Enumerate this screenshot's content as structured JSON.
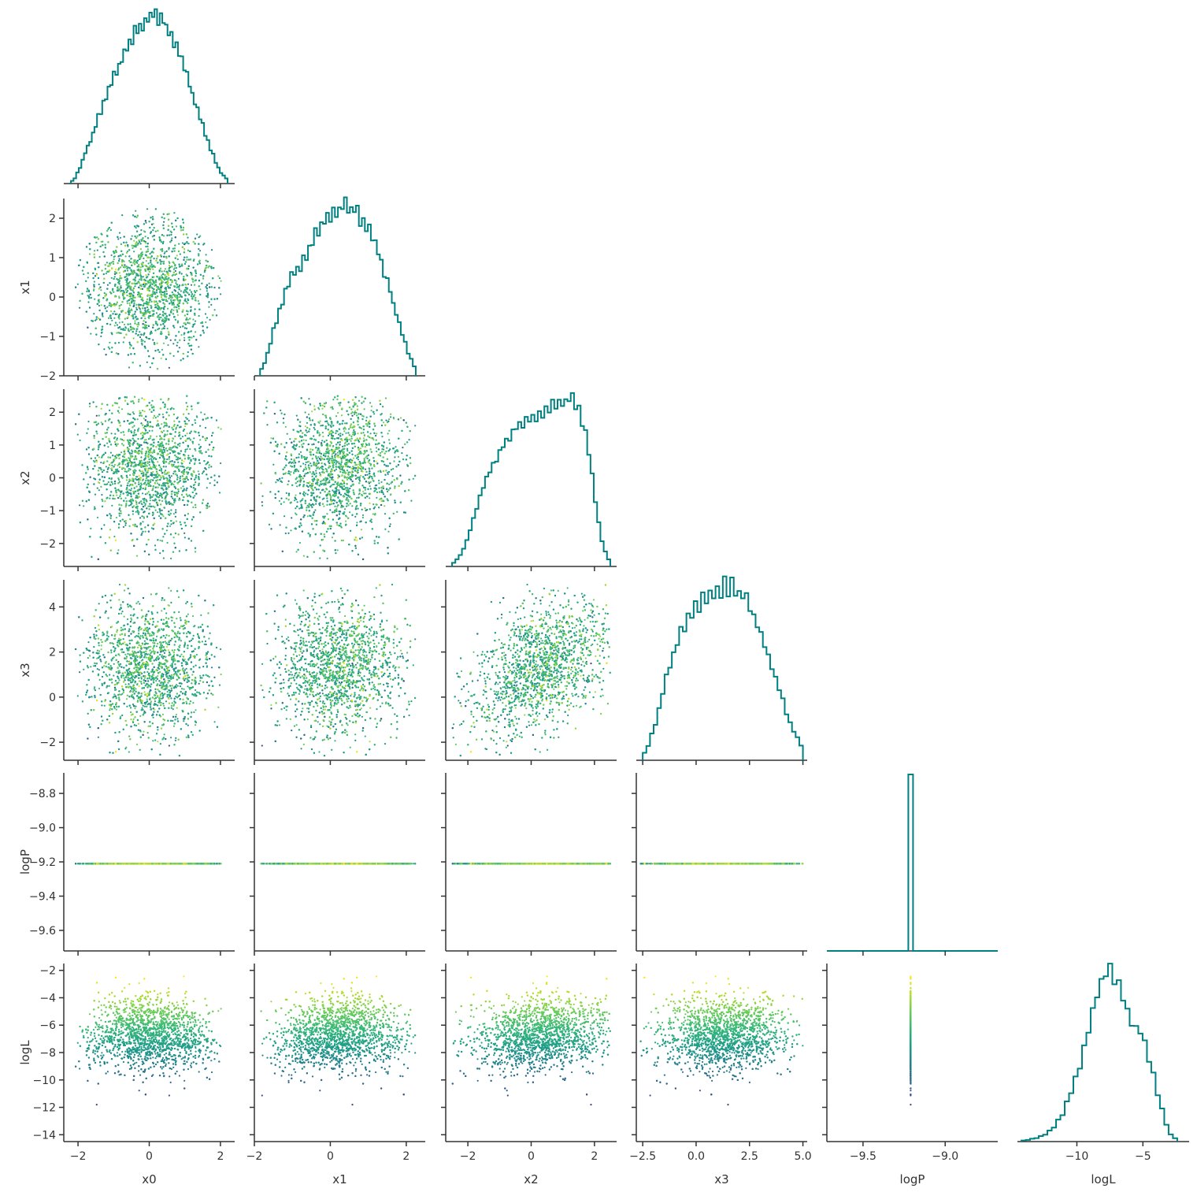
{
  "chart_data": {
    "type": "corner",
    "parameters": [
      "x0",
      "x1",
      "x2",
      "x3",
      "logP",
      "logL"
    ],
    "colormap": "viridis",
    "color_by": "logL",
    "hist_color": "#008080",
    "grid": false,
    "ranges": {
      "x0": [
        -2.4,
        2.4
      ],
      "x1": [
        -2.0,
        2.5
      ],
      "x2": [
        -2.7,
        2.7
      ],
      "x3": [
        -2.8,
        5.2
      ],
      "logP": [
        -9.72,
        -8.68
      ],
      "logL": [
        -14.5,
        -1.5
      ]
    },
    "ticks": {
      "x0": [
        -2,
        0,
        2
      ],
      "x1": [
        -2,
        0,
        2
      ],
      "x2": [
        -2,
        0,
        2
      ],
      "x3": [
        -2.5,
        0.0,
        2.5,
        5.0
      ],
      "logP_x": [
        -9.5,
        -9.0
      ],
      "logP_y": [
        -9.6,
        -9.4,
        -9.2,
        -9.0,
        -8.8
      ],
      "logL_x": [
        -10,
        -5
      ],
      "logL_y": [
        -14,
        -12,
        -10,
        -8,
        -6,
        -4,
        -2
      ],
      "x1_y": [
        -2,
        -1,
        0,
        1,
        2
      ],
      "x2_y": [
        -2,
        -1,
        0,
        1,
        2
      ],
      "x3_y": [
        -2,
        0,
        2,
        4
      ]
    },
    "tick_labels": {
      "x0": [
        "−2",
        "0",
        "2"
      ],
      "x1": [
        "−2",
        "0",
        "2"
      ],
      "x2": [
        "−2",
        "0",
        "2"
      ],
      "x3": [
        "−2.5",
        "0.0",
        "2.5",
        "5.0"
      ],
      "logP_x": [
        "−9.5",
        "−9.0"
      ],
      "logP_y": [
        "−9.6",
        "−9.4",
        "−9.2",
        "−9.0",
        "−8.8"
      ],
      "logL_x": [
        "−10",
        "−5"
      ],
      "logL_y": [
        "−14",
        "−12",
        "−10",
        "−8",
        "−6",
        "−4",
        "−2"
      ],
      "x1_y": [
        "−2",
        "−1",
        "0",
        "1",
        "2"
      ],
      "x2_y": [
        "−2",
        "−1",
        "0",
        "1",
        "2"
      ],
      "x3_y": [
        "−2",
        "0",
        "2",
        "4"
      ]
    },
    "logP_constant": -9.21,
    "marginal_histograms": {
      "x0": {
        "edges": [
          -2.2,
          2.2
        ],
        "counts": [
          1,
          2,
          4,
          6,
          9,
          12,
          14,
          16,
          19,
          22,
          25,
          27,
          30,
          33,
          36,
          38,
          41,
          43,
          45,
          47,
          49,
          51,
          53,
          55,
          57,
          58,
          60,
          61,
          62,
          63,
          64,
          64,
          64,
          63,
          62,
          61,
          60,
          58,
          56,
          54,
          51,
          49,
          46,
          43,
          40,
          37,
          34,
          31,
          28,
          25,
          22,
          19,
          16,
          13,
          11,
          8,
          6,
          4,
          3,
          2
        ]
      },
      "x1": {
        "edges": [
          -1.85,
          2.25
        ],
        "counts": [
          2,
          4,
          7,
          10,
          14,
          17,
          20,
          23,
          26,
          28,
          30,
          31,
          32,
          33,
          35,
          37,
          39,
          41,
          43,
          44,
          46,
          47,
          48,
          49,
          50,
          51,
          51,
          52,
          52,
          52,
          51,
          50,
          49,
          48,
          47,
          46,
          44,
          42,
          40,
          38,
          35,
          32,
          29,
          26,
          22,
          19,
          16,
          13,
          10,
          7,
          5,
          3
        ]
      },
      "x2": {
        "edges": [
          -2.5,
          2.5
        ],
        "counts": [
          1,
          2,
          3,
          5,
          7,
          10,
          13,
          16,
          19,
          22,
          24,
          26,
          28,
          30,
          32,
          33,
          35,
          36,
          37,
          38,
          38,
          39,
          39,
          40,
          40,
          41,
          42,
          42,
          43,
          44,
          44,
          45,
          45,
          46,
          46,
          47,
          46,
          45,
          43,
          40,
          36,
          31,
          25,
          18,
          12,
          7,
          4,
          2
        ]
      },
      "x3": {
        "edges": [
          -2.5,
          5.0
        ],
        "counts": [
          2,
          4,
          7,
          10,
          14,
          18,
          22,
          26,
          29,
          32,
          35,
          37,
          39,
          40,
          41,
          42,
          43,
          44,
          45,
          45,
          46,
          46,
          47,
          47,
          47,
          46,
          45,
          44,
          43,
          41,
          39,
          37,
          34,
          31,
          28,
          25,
          22,
          19,
          16,
          13,
          10,
          8,
          6,
          4
        ]
      },
      "logP": {
        "edges": [
          -9.72,
          -8.68
        ],
        "spike_at": -9.21
      },
      "logL": {
        "edges": [
          -14.2,
          -2.4
        ],
        "counts": [
          0.3,
          0.5,
          0.8,
          1,
          1.5,
          2,
          3,
          4,
          6,
          8,
          11,
          14,
          18,
          22,
          27,
          32,
          37,
          42,
          46,
          48,
          49,
          47,
          44,
          41,
          38,
          35,
          33,
          31,
          28,
          24,
          19,
          14,
          9,
          5,
          2,
          1
        ]
      }
    },
    "scatter_panels": [
      {
        "x": "x0",
        "y": "x1"
      },
      {
        "x": "x0",
        "y": "x2"
      },
      {
        "x": "x1",
        "y": "x2"
      },
      {
        "x": "x0",
        "y": "x3"
      },
      {
        "x": "x1",
        "y": "x3"
      },
      {
        "x": "x2",
        "y": "x3"
      },
      {
        "x": "x0",
        "y": "logP"
      },
      {
        "x": "x1",
        "y": "logP"
      },
      {
        "x": "x2",
        "y": "logP"
      },
      {
        "x": "x3",
        "y": "logP"
      },
      {
        "x": "x0",
        "y": "logL"
      },
      {
        "x": "x1",
        "y": "logL"
      },
      {
        "x": "x2",
        "y": "logL"
      },
      {
        "x": "x3",
        "y": "logL"
      },
      {
        "x": "logP",
        "y": "logL"
      }
    ]
  }
}
